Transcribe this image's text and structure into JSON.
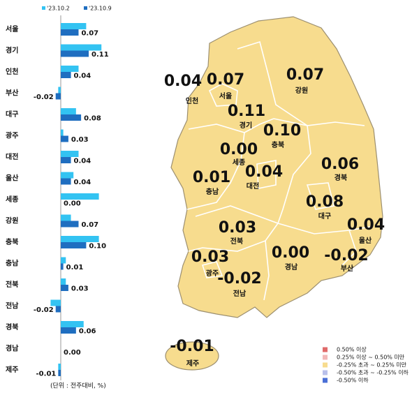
{
  "chart_data": {
    "type": "bar",
    "orientation": "horizontal",
    "categories": [
      "서울",
      "경기",
      "인천",
      "부산",
      "대구",
      "광주",
      "대전",
      "울산",
      "세종",
      "강원",
      "충북",
      "충남",
      "전북",
      "전남",
      "경북",
      "경남",
      "제주"
    ],
    "series": [
      {
        "name": "'23.10.2",
        "color": "#33c3f2",
        "values": [
          0.1,
          0.16,
          0.07,
          -0.01,
          0.06,
          0.01,
          0.07,
          0.05,
          0.15,
          0.04,
          0.15,
          0.02,
          0.02,
          -0.04,
          0.09,
          0.0,
          -0.01
        ]
      },
      {
        "name": "'23.10.9",
        "color": "#1f6ec0",
        "values": [
          0.07,
          0.11,
          0.04,
          -0.02,
          0.08,
          0.03,
          0.04,
          0.04,
          0.0,
          0.07,
          0.1,
          0.01,
          0.03,
          -0.02,
          0.06,
          0.0,
          -0.01
        ],
        "value_labels": [
          "0.07",
          "0.11",
          "0.04",
          "-0.02",
          "0.08",
          "0.03",
          "0.04",
          "0.04",
          "0.00",
          "0.07",
          "0.10",
          "0.01",
          "0.03",
          "-0.02",
          "0.06",
          "0.00",
          "-0.01"
        ]
      }
    ],
    "unit_note": "(단위 : 전주대비, %)"
  },
  "map": {
    "regions": [
      {
        "name": "인천",
        "value": "0.04"
      },
      {
        "name": "서울",
        "value": "0.07"
      },
      {
        "name": "강원",
        "value": "0.07"
      },
      {
        "name": "경기",
        "value": "0.11"
      },
      {
        "name": "충북",
        "value": "0.10"
      },
      {
        "name": "세종",
        "value": "0.00"
      },
      {
        "name": "대전",
        "value": "0.04"
      },
      {
        "name": "경북",
        "value": "0.06"
      },
      {
        "name": "충남",
        "value": "0.01"
      },
      {
        "name": "대구",
        "value": "0.08"
      },
      {
        "name": "울산",
        "value": "0.04"
      },
      {
        "name": "전북",
        "value": "0.03"
      },
      {
        "name": "경남",
        "value": "0.00"
      },
      {
        "name": "부산",
        "value": "-0.02"
      },
      {
        "name": "광주",
        "value": "0.03"
      },
      {
        "name": "전남",
        "value": "-0.02"
      },
      {
        "name": "제주",
        "value": "-0.01"
      }
    ],
    "legend": [
      {
        "label": "0.50% 이상",
        "color": "#e06a6a"
      },
      {
        "label": "0.25% 이상 ~ 0.50% 미만",
        "color": "#f2b8b8"
      },
      {
        "label": "-0.25% 초과 ~ 0.25% 미만",
        "color": "#f7dc8e"
      },
      {
        "label": "-0.50% 초과 ~ -0.25% 이하",
        "color": "#b9c0ea"
      },
      {
        "label": "-0.50% 이하",
        "color": "#4a6fd6"
      }
    ]
  }
}
